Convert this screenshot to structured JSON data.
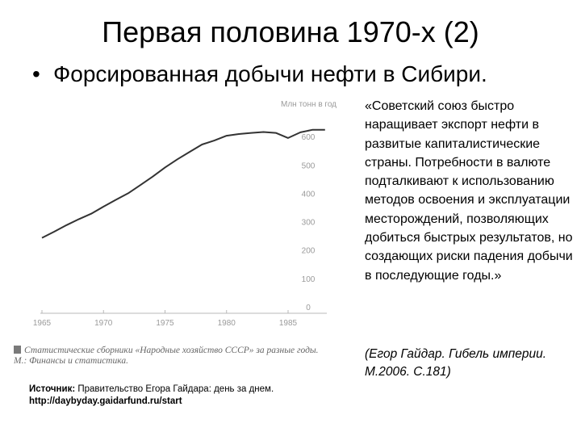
{
  "slide": {
    "title": "Первая половина 1970-х (2)",
    "bullet": "Форсированная добычи нефти в Сибири.",
    "quote": "«Советский союз быстро наращивает экспорт нефти в развитые капиталистические страны. Потребности в валюте подталкивают к использованию методов освоения и эксплуатации месторождений, позволяющих добиться быстрых результатов, но создающих риски падения добычи в последующие годы.»",
    "quote_author": "(Егор Гайдар. Гибель империи. М.2006. С.181)",
    "stat_note_line1": "Статистические сборники «Народные хозяйство СССР» за разные годы.",
    "stat_note_line2": "М.: Финансы и статистика.",
    "source_label": "Источник:",
    "source_text": " Правительство Егора Гайдара: день за днем.",
    "source_url": "http://daybyday.gaidarfund.ru/start"
  },
  "chart_data": {
    "type": "line",
    "title": "",
    "ylabel": "Млн тонн в год",
    "xlabel": "",
    "ylim": [
      0,
      700
    ],
    "xlim": [
      1965,
      1989
    ],
    "x_ticks": [
      "1965",
      "1970",
      "1975",
      "1980",
      "1985"
    ],
    "y_ticks": [
      "0",
      "100",
      "200",
      "300",
      "400",
      "500",
      "600"
    ],
    "series": [
      {
        "x": [
          1965,
          1966,
          1967,
          1968,
          1969,
          1970,
          1971,
          1972,
          1973,
          1974,
          1975,
          1976,
          1977,
          1978,
          1979,
          1980,
          1981,
          1982,
          1983,
          1984,
          1985,
          1986,
          1987,
          1988
        ],
        "values": [
          243,
          265,
          288,
          309,
          328,
          353,
          377,
          400,
          429,
          459,
          491,
          520,
          546,
          572,
          586,
          603,
          609,
          613,
          616,
          613,
          595,
          615,
          624,
          624
        ],
        "color": "#333333"
      }
    ],
    "grid": false
  }
}
